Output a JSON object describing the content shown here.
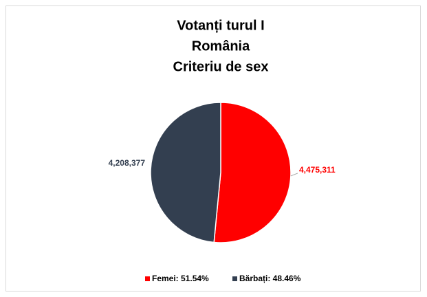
{
  "chart_data": {
    "type": "pie",
    "title": [
      "Votanți turul I",
      "România",
      "Criteriu de sex"
    ],
    "categories": [
      "Femei: 51.54%",
      "Bărbați: 48.46%"
    ],
    "values": [
      4475311,
      4208377
    ],
    "value_labels": [
      "4,475,311",
      "4,208,377"
    ],
    "colors": [
      "#ff0000",
      "#333f50"
    ],
    "legend": "bottom"
  }
}
